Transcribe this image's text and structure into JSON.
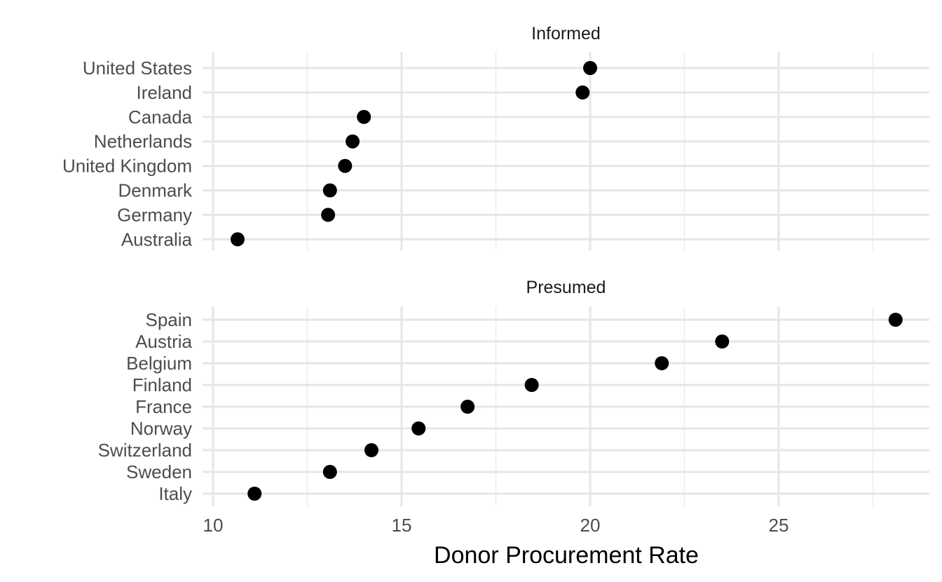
{
  "chart_data": {
    "type": "scatter",
    "xlabel": "Donor Procurement Rate",
    "xlim": [
      9.8,
      28.8
    ],
    "xticks": [
      10,
      15,
      20,
      25
    ],
    "grid": true,
    "panels": [
      {
        "title": "Informed",
        "categories": [
          "United States",
          "Ireland",
          "Canada",
          "Netherlands",
          "United Kingdom",
          "Denmark",
          "Germany",
          "Australia"
        ],
        "values": [
          20.0,
          19.8,
          14.0,
          13.7,
          13.5,
          13.1,
          13.05,
          10.65
        ]
      },
      {
        "title": "Presumed",
        "categories": [
          "Spain",
          "Austria",
          "Belgium",
          "Finland",
          "France",
          "Norway",
          "Switzerland",
          "Sweden",
          "Italy"
        ],
        "values": [
          28.1,
          23.5,
          21.9,
          18.45,
          16.75,
          15.45,
          14.2,
          13.1,
          11.1
        ]
      }
    ]
  }
}
